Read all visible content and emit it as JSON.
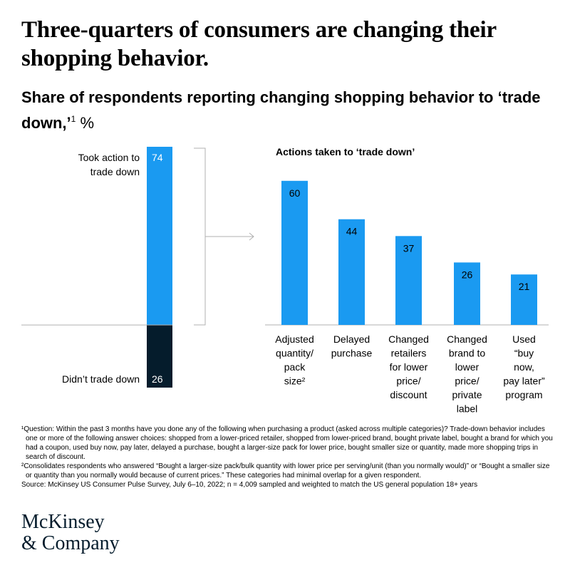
{
  "title": "Three-quarters of consumers are changing their shopping behavior.",
  "subtitle": {
    "text": "Share of respondents reporting changing shopping behavior to ‘trade down,’",
    "superscript": "1",
    "unit": "%"
  },
  "colors": {
    "primary_blue": "#1a9af1",
    "dark_navy": "#051c2c",
    "axis_gray": "#b0b0b0"
  },
  "chart_data": [
    {
      "type": "bar",
      "stacked": true,
      "segments": [
        {
          "label": "Took action to trade down",
          "value": 74,
          "color": "#1a9af1"
        },
        {
          "label": "Didn’t trade down",
          "value": 26,
          "color": "#051c2c"
        }
      ],
      "ylim": [
        0,
        100
      ]
    },
    {
      "type": "bar",
      "title": "Actions taken to ‘trade down’",
      "categories": [
        [
          "Adjusted",
          "quantity/",
          "pack",
          "size²"
        ],
        [
          "Delayed",
          "purchase"
        ],
        [
          "Changed",
          "retailers",
          "for lower",
          "price/",
          "discount"
        ],
        [
          "Changed",
          "brand to",
          "lower",
          "price/",
          "private",
          "label"
        ],
        [
          "Used",
          "“buy",
          "now,",
          "pay later”",
          "program"
        ]
      ],
      "values": [
        60,
        44,
        37,
        26,
        21
      ],
      "color": "#1a9af1"
    }
  ],
  "footnotes": [
    "¹Question: Within the past 3 months have you done any of the following when purchasing a product (asked across multiple categories)? Trade-down behavior includes one or more of the following answer choices: shopped from a lower-priced retailer, shopped from lower-priced brand, bought private label, bought a brand for which you had a coupon, used buy now, pay later, delayed a purchase, bought a larger-size pack for lower price, bought smaller size or quantity, made more shopping trips in search of discount.",
    "²Consolidates respondents who answered “Bought a larger-size pack/bulk quantity with lower price per serving/unit (than you normally would)” or “Bought a smaller size or quantity than you normally would because of current prices.” These categories had minimal overlap for a given respondent.",
    "Source: McKinsey US Consumer Pulse Survey, July 6–10, 2022; n = 4,009 sampled and weighted to match the US general population 18+ years"
  ],
  "logo": {
    "line1": "McKinsey",
    "line2": "& Company"
  }
}
